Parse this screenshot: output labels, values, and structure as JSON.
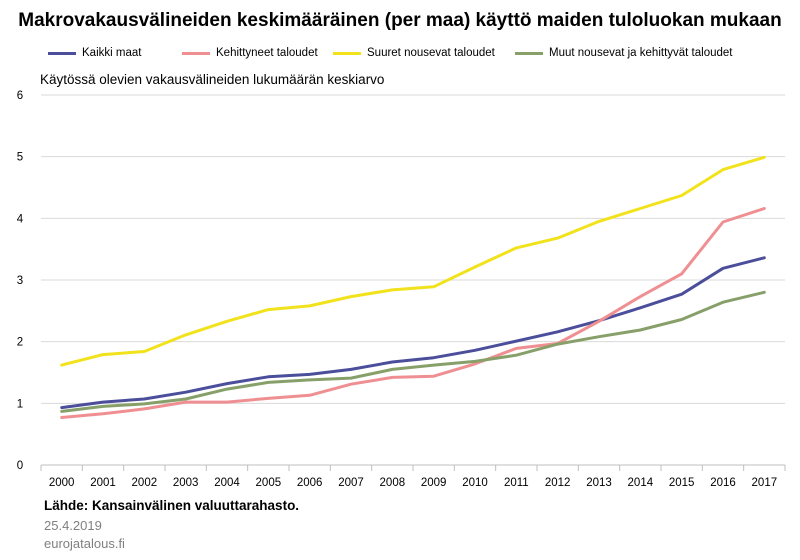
{
  "title": "Makrovakausvälineiden keskimääräinen (per maa) käyttö maiden tuloluokan mukaan",
  "subtitle": "Käytössä olevien vakausvälineiden lukumäärän keskiarvo",
  "source": "Lähde: Kansainvälinen valuuttarahasto.",
  "date": "25.4.2019",
  "site": "eurojatalous.fi",
  "legend": [
    {
      "label": "Kaikki maat",
      "color": "#4b4f9b"
    },
    {
      "label": "Kehittyneet taloudet",
      "color": "#ef8f92"
    },
    {
      "label": "Suuret nousevat taloudet",
      "color": "#f2e21b"
    },
    {
      "label": "Muut nousevat ja kehittyvät taloudet",
      "color": "#87a06a"
    }
  ],
  "chart_data": {
    "type": "line",
    "title": "Makrovakausvälineiden keskimääräinen (per maa) käyttö maiden tuloluokan mukaan",
    "ylabel": "Käytössä olevien vakausvälineiden lukumäärän keskiarvo",
    "xlabel": "",
    "categories": [
      "2000",
      "2001",
      "2002",
      "2003",
      "2004",
      "2005",
      "2006",
      "2007",
      "2008",
      "2009",
      "2010",
      "2011",
      "2012",
      "2013",
      "2014",
      "2015",
      "2016",
      "2017"
    ],
    "ylim": [
      0,
      6
    ],
    "yticks": [
      0,
      1,
      2,
      3,
      4,
      5,
      6
    ],
    "grid": "horizontal",
    "legend_position": "top",
    "series": [
      {
        "name": "Kaikki maat",
        "color": "#4b4f9b",
        "values": [
          0.93,
          1.02,
          1.07,
          1.18,
          1.32,
          1.43,
          1.47,
          1.55,
          1.67,
          1.74,
          1.86,
          2.01,
          2.16,
          2.34,
          2.55,
          2.77,
          3.19,
          3.36
        ]
      },
      {
        "name": "Kehittyneet taloudet",
        "color": "#ef8f92",
        "values": [
          0.77,
          0.83,
          0.91,
          1.02,
          1.02,
          1.08,
          1.13,
          1.31,
          1.42,
          1.44,
          1.64,
          1.89,
          1.97,
          2.33,
          2.73,
          3.1,
          3.94,
          4.16
        ]
      },
      {
        "name": "Suuret nousevat taloudet",
        "color": "#f2e21b",
        "values": [
          1.62,
          1.79,
          1.84,
          2.11,
          2.33,
          2.52,
          2.58,
          2.73,
          2.84,
          2.89,
          3.21,
          3.52,
          3.68,
          3.95,
          4.16,
          4.37,
          4.79,
          4.99
        ]
      },
      {
        "name": "Muut nousevat ja kehittyvät taloudet",
        "color": "#87a06a",
        "values": [
          0.87,
          0.95,
          0.99,
          1.07,
          1.23,
          1.34,
          1.38,
          1.41,
          1.55,
          1.62,
          1.68,
          1.78,
          1.96,
          2.08,
          2.19,
          2.36,
          2.64,
          2.8
        ]
      }
    ]
  }
}
